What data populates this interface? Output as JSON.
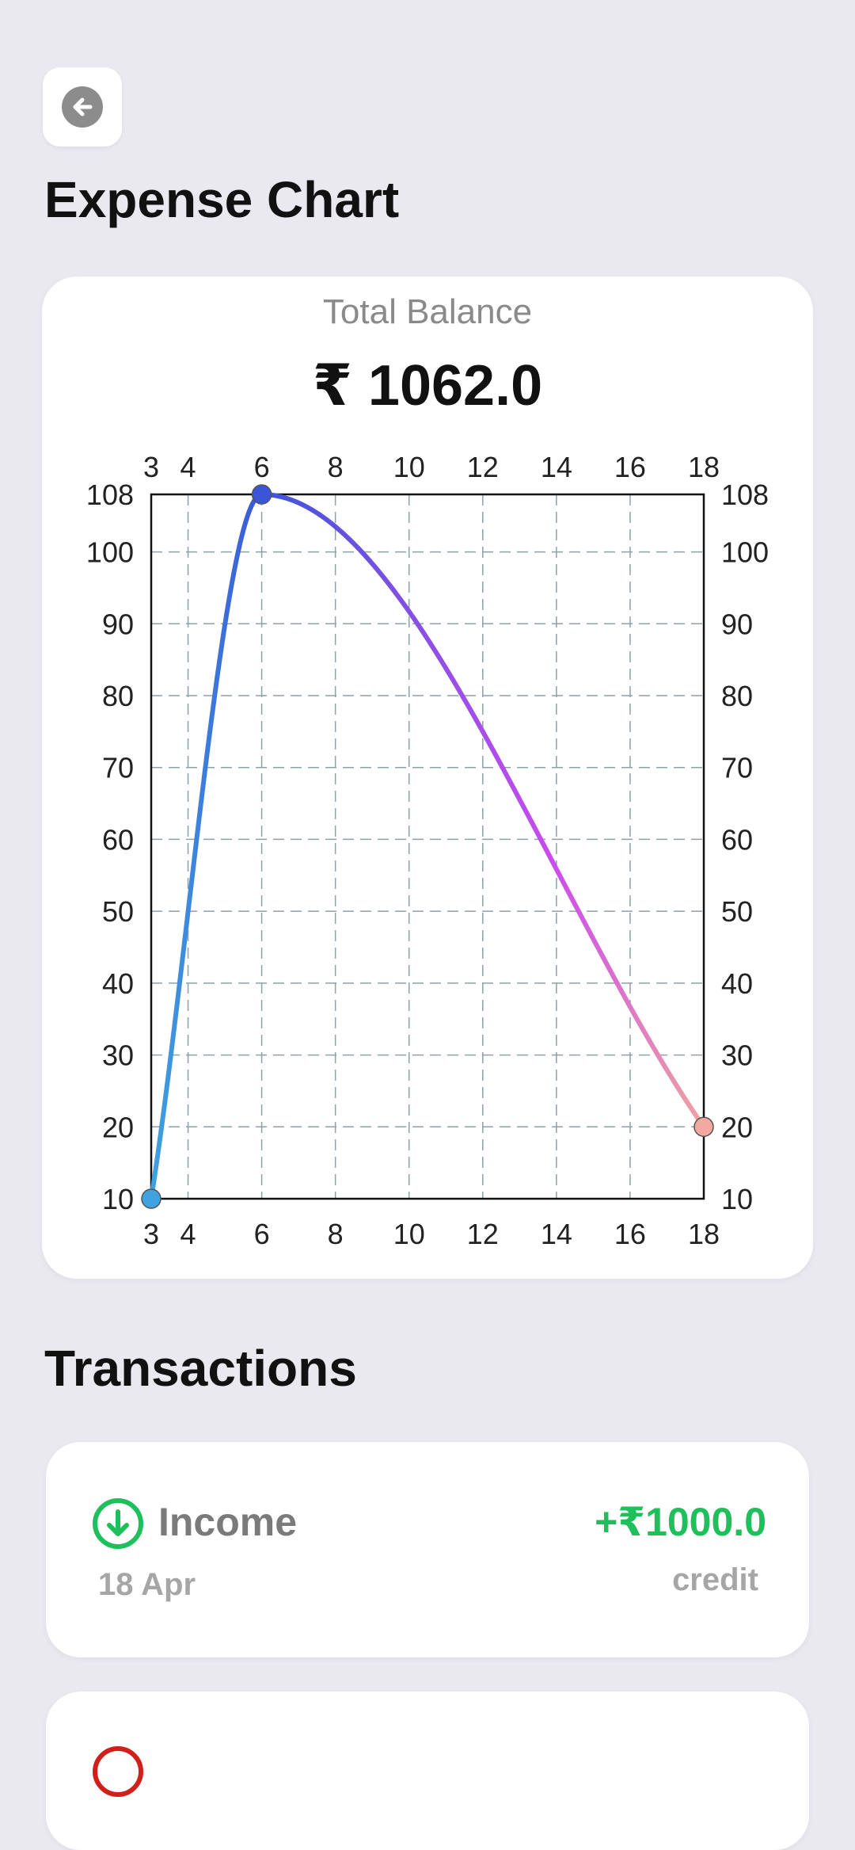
{
  "header": {
    "title": "Expense Chart",
    "back_icon": "arrow-left-icon"
  },
  "balance": {
    "label": "Total Balance",
    "value": "₹ 1062.0"
  },
  "chart_data": {
    "type": "line",
    "title": "",
    "xlabel": "",
    "ylabel": "",
    "x": [
      3,
      6,
      18
    ],
    "series": [
      {
        "values": [
          10,
          108,
          20
        ]
      }
    ],
    "xlim": [
      3,
      18
    ],
    "ylim": [
      10,
      108
    ],
    "xticks": [
      3,
      4,
      6,
      8,
      10,
      12,
      14,
      16,
      18
    ],
    "yticks": [
      10,
      20,
      30,
      40,
      50,
      60,
      70,
      80,
      90,
      100,
      108
    ],
    "axes_on_all_sides": true,
    "grid": true,
    "gradient_colors": [
      "#3fa3e0",
      "#3b55d8",
      "#c94bef",
      "#f0a3a0"
    ],
    "point_colors": [
      "#3fa3e0",
      "#3b55d8",
      "#f3a99f"
    ]
  },
  "transactions": {
    "title": "Transactions",
    "items": [
      {
        "name": "Income",
        "date": "18 Apr",
        "amount": "+₹1000.0",
        "type": "credit",
        "icon": "arrow-down-circle-icon",
        "color": "#1fbf5b"
      }
    ],
    "partial_icon_color": "#d0201a"
  }
}
